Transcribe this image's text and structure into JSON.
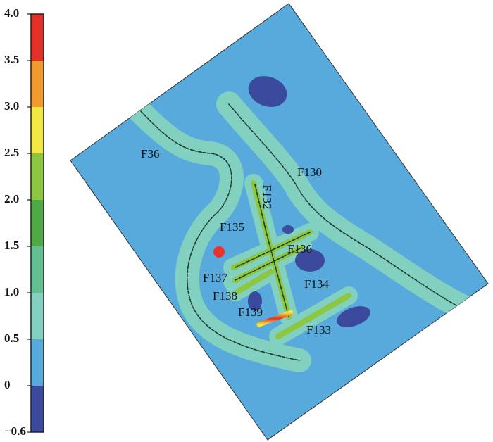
{
  "colorbar": {
    "ticks": [
      "4.0",
      "3.5",
      "3.0",
      "2.5",
      "2.0",
      "1.5",
      "1.0",
      "0.5",
      "0",
      "−0.6"
    ],
    "colors": [
      "#e3312a",
      "#f29a2e",
      "#f2e843",
      "#8dc641",
      "#4fa945",
      "#63bf8f",
      "#82d0c0",
      "#58aadc",
      "#3b4a9c"
    ]
  },
  "labels": [
    "F36",
    "F130",
    "F132",
    "F135",
    "F136",
    "F137",
    "F134",
    "F138",
    "F139",
    "F133"
  ]
}
